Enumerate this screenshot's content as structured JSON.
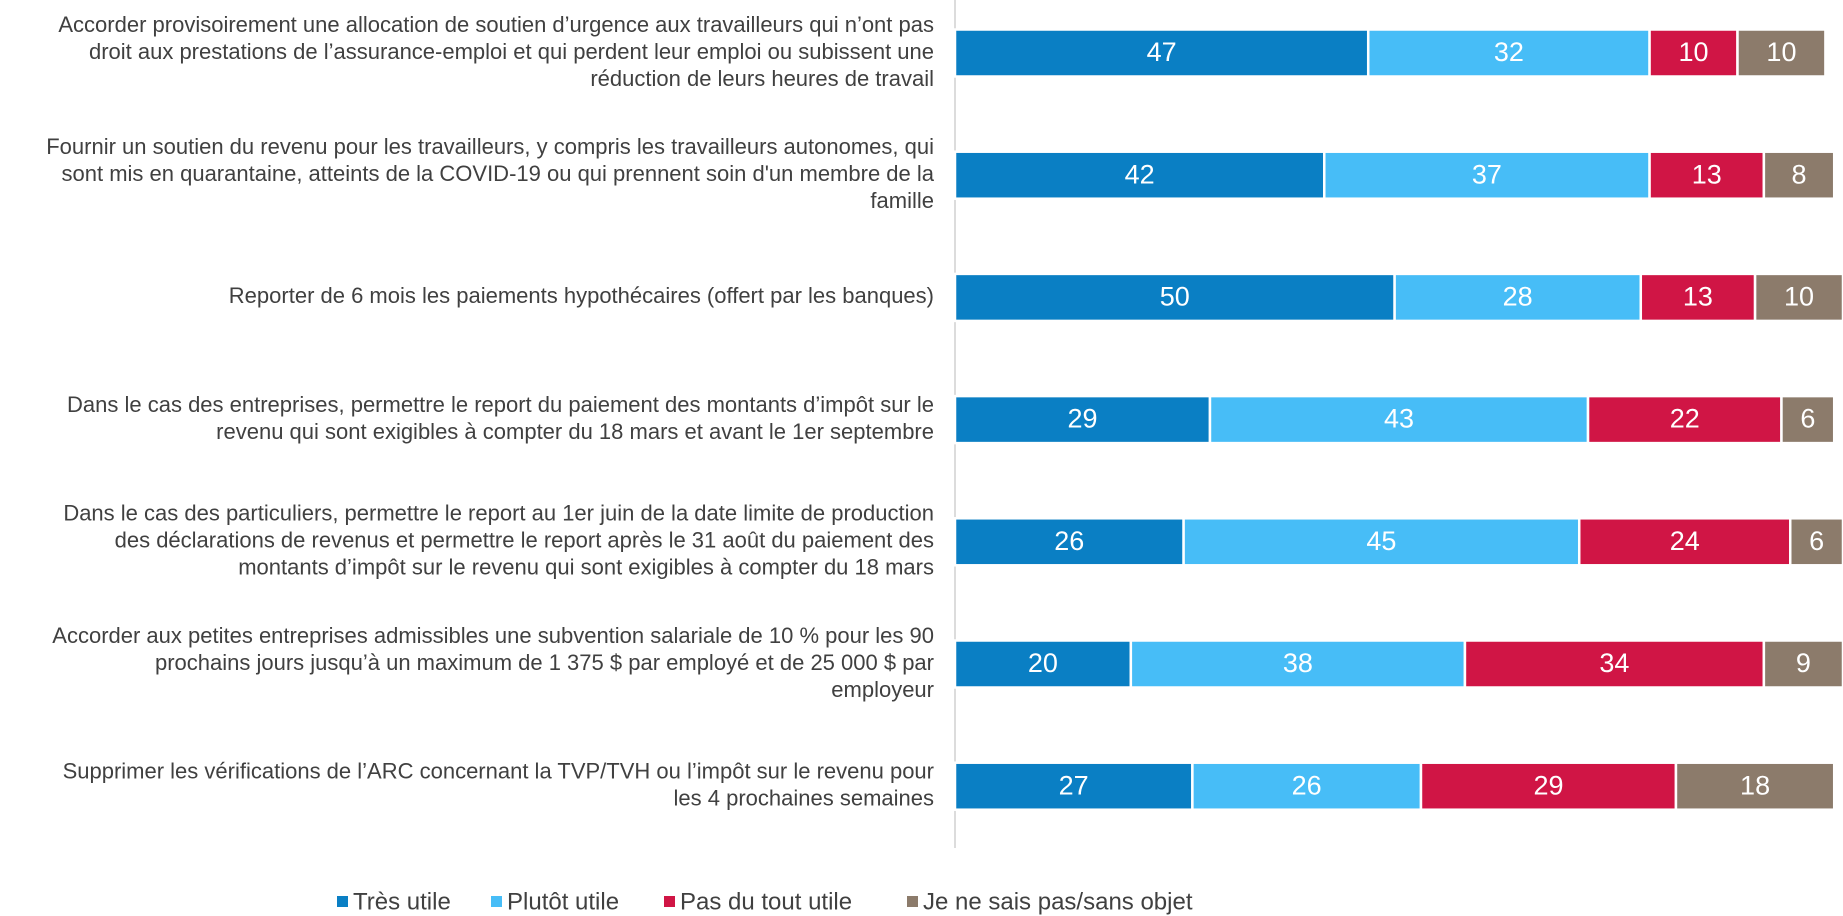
{
  "chart_data": {
    "type": "stacked-bar-horizontal",
    "categories": [
      [
        "Accorder provisoirement une allocation de soutien d’urgence aux travailleurs qui n’ont pas",
        "droit aux prestations de l’assurance-emploi et qui perdent leur emploi ou subissent une",
        "réduction de leurs heures de travail"
      ],
      [
        "Fournir un soutien du revenu pour les travailleurs, y compris les travailleurs autonomes, qui",
        "sont mis en quarantaine, atteints de la COVID-19 ou qui prennent soin d'un membre de la",
        "famille"
      ],
      [
        "Reporter de 6 mois les paiements hypothécaires (offert par les banques)"
      ],
      [
        "Dans le cas des entreprises, permettre le report du paiement des montants d’impôt sur le",
        "revenu qui sont exigibles à compter du 18 mars et avant le 1er septembre"
      ],
      [
        "Dans le cas des particuliers, permettre le report au 1er juin de la date limite de production",
        "des déclarations de revenus et permettre le report après le 31 août du paiement des",
        "montants d’impôt sur le revenu qui sont exigibles à compter du 18 mars"
      ],
      [
        "Accorder aux petites entreprises admissibles une subvention salariale de 10 % pour les 90",
        "prochains jours jusqu’à un maximum de 1 375 $ par employé et de 25 000 $ par",
        "employeur"
      ],
      [
        "Supprimer les vérifications de l’ARC concernant la TVP/TVH ou l’impôt sur le revenu pour",
        "les 4 prochaines semaines"
      ]
    ],
    "series": [
      {
        "name": "Très utile",
        "color": "#0a7fc4",
        "values": [
          47,
          42,
          50,
          29,
          26,
          20,
          27
        ]
      },
      {
        "name": "Plutôt utile",
        "color": "#47bdf7",
        "values": [
          32,
          37,
          28,
          43,
          45,
          38,
          26
        ]
      },
      {
        "name": "Pas du tout utile",
        "color": "#d01545",
        "values": [
          10,
          13,
          13,
          22,
          24,
          34,
          29
        ]
      },
      {
        "name": "Je ne sais pas/sans objet",
        "color": "#8c7b6b",
        "values": [
          10,
          8,
          10,
          6,
          6,
          9,
          18
        ]
      }
    ]
  }
}
